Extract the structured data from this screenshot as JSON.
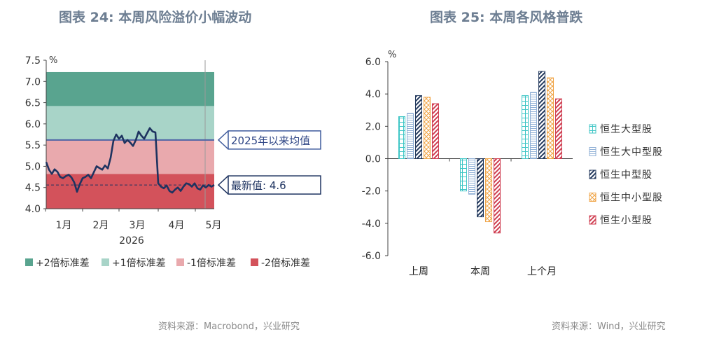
{
  "left": {
    "title": "图表  24:  本周风险溢价小幅波动",
    "source": "资料来源：Macrobond，兴业研究"
  },
  "right": {
    "title": "图表  25:  本周各风格普跌",
    "source": "资料来源：Wind，兴业研究"
  },
  "chart_data": [
    {
      "type": "line",
      "unit": "%",
      "ylim": [
        4.0,
        7.5
      ],
      "yticks": [
        "7.5",
        "7.0",
        "6.5",
        "6.0",
        "5.5",
        "5.0",
        "4.5",
        "4.0"
      ],
      "xticks": [
        "1月",
        "2月",
        "3月",
        "4月",
        "5月"
      ],
      "xyear": "2026",
      "bands": [
        {
          "name": "+2倍标准差",
          "from": 6.42,
          "to": 7.22,
          "color": "#59a48f"
        },
        {
          "name": "+1倍标准差",
          "from": 5.62,
          "to": 6.42,
          "color": "#a8d4c8"
        },
        {
          "name": "-1倍标准差",
          "from": 4.82,
          "to": 5.62,
          "color": "#e9a9ad"
        },
        {
          "name": "-2倍标准差",
          "from": 4.0,
          "to": 4.82,
          "color": "#d3525b"
        }
      ],
      "mean_line": {
        "value": 5.62,
        "label": "2025年以来均值",
        "color": "#4e63a6"
      },
      "latest": {
        "value": 4.56,
        "label": "最新值: 4.6"
      },
      "series": [
        {
          "color": "#1e3360",
          "x": [
            0,
            2,
            4,
            6,
            8,
            10,
            12,
            14,
            16,
            18,
            20,
            22,
            24,
            26,
            28,
            30,
            32,
            34,
            36,
            38,
            40,
            42,
            44,
            46,
            48,
            50,
            52,
            54,
            56,
            58,
            60,
            62,
            64,
            66,
            68,
            70,
            72,
            74,
            76,
            78,
            80,
            82,
            84,
            86,
            88,
            90,
            92,
            94,
            96,
            98,
            100,
            102,
            104,
            106,
            108,
            110,
            112,
            114,
            116,
            118,
            120
          ],
          "values": [
            5.1,
            4.92,
            4.82,
            4.93,
            4.87,
            4.75,
            4.72,
            4.77,
            4.8,
            4.74,
            4.62,
            4.4,
            4.58,
            4.72,
            4.75,
            4.8,
            4.72,
            4.86,
            5.0,
            4.96,
            4.92,
            5.02,
            4.95,
            5.2,
            5.6,
            5.75,
            5.65,
            5.72,
            5.55,
            5.62,
            5.56,
            5.48,
            5.62,
            5.82,
            5.72,
            5.65,
            5.78,
            5.9,
            5.82,
            5.8,
            4.6,
            4.52,
            4.48,
            4.55,
            4.42,
            4.38,
            4.45,
            4.5,
            4.42,
            4.52,
            4.6,
            4.58,
            4.52,
            4.6,
            4.48,
            4.45,
            4.55,
            4.5,
            4.56,
            4.52,
            4.56
          ]
        }
      ]
    },
    {
      "type": "bar",
      "unit": "%",
      "ylim": [
        -6.0,
        6.0
      ],
      "yticks": [
        "6.0",
        "4.0",
        "2.0",
        "0.0",
        "-2.0",
        "-4.0",
        "-6.0"
      ],
      "categories": [
        "上周",
        "本周",
        "上个月"
      ],
      "series": [
        {
          "name": "恒生大型股",
          "color": "#3fc6c6",
          "pattern": "grid",
          "values": [
            2.6,
            -2.0,
            3.9
          ]
        },
        {
          "name": "恒生大中型股",
          "color": "#90b0d6",
          "pattern": "hlines",
          "values": [
            2.8,
            -2.2,
            4.1
          ]
        },
        {
          "name": "恒生中型股",
          "color": "#243a5e",
          "pattern": "diag",
          "values": [
            3.9,
            -3.6,
            5.4
          ]
        },
        {
          "name": "恒生中小型股",
          "color": "#f0a64a",
          "pattern": "cross",
          "values": [
            3.8,
            -3.9,
            5.0
          ]
        },
        {
          "name": "恒生小型股",
          "color": "#cf3d50",
          "pattern": "diag",
          "values": [
            3.4,
            -4.6,
            3.7
          ]
        }
      ]
    }
  ]
}
